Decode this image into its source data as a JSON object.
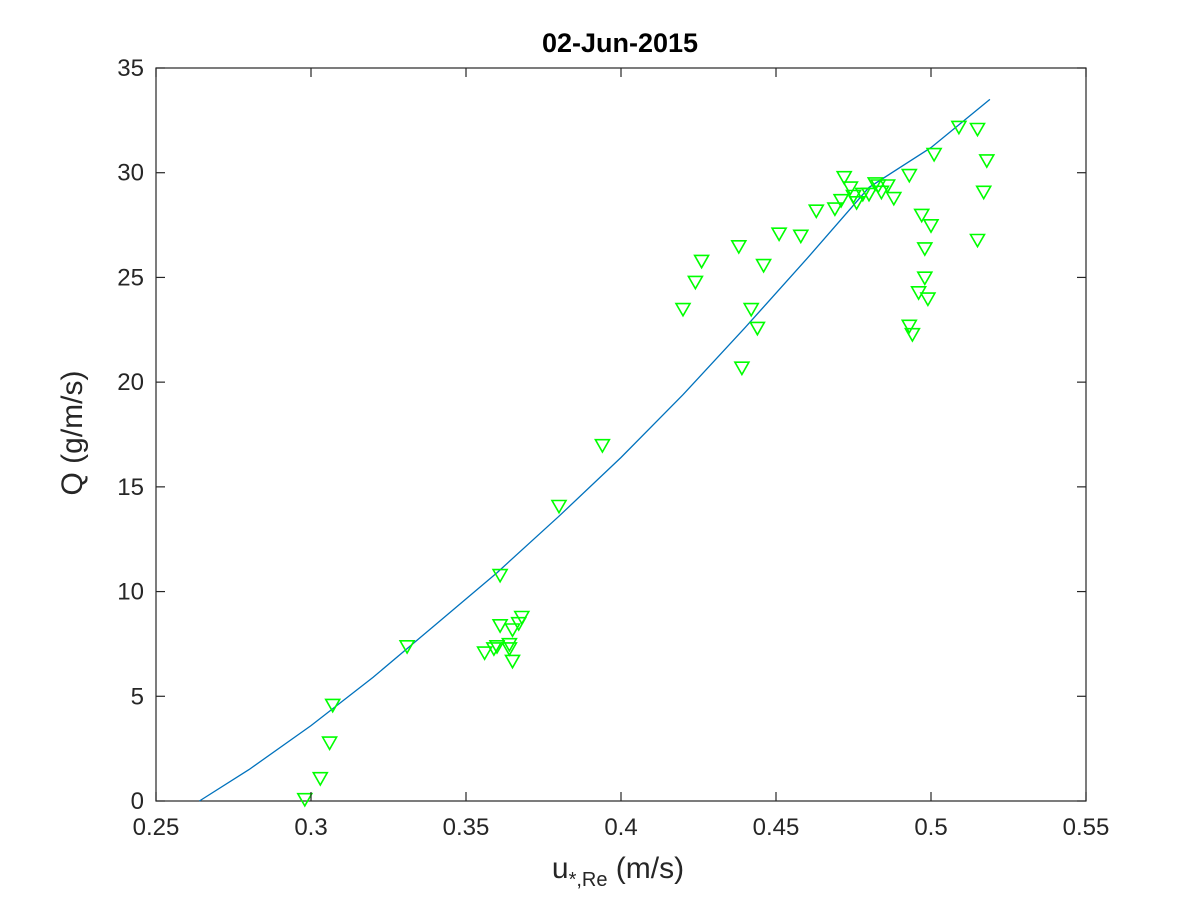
{
  "chart_data": {
    "type": "scatter",
    "title": "02-Jun-2015",
    "xlabel": {
      "main": "u",
      "sub": "*,Re",
      "unit": " (m/s)"
    },
    "ylabel": "Q (g/m/s)",
    "xlim": [
      0.25,
      0.55
    ],
    "ylim": [
      0,
      35
    ],
    "xticks": [
      0.25,
      0.3,
      0.35,
      0.4,
      0.45,
      0.5,
      0.55
    ],
    "xtick_labels": [
      "0.25",
      "0.3",
      "0.35",
      "0.4",
      "0.45",
      "0.5",
      "0.55"
    ],
    "yticks": [
      0,
      5,
      10,
      15,
      20,
      25,
      30,
      35
    ],
    "ytick_labels": [
      "0",
      "5",
      "10",
      "15",
      "20",
      "25",
      "30",
      "35"
    ],
    "grid": false,
    "marker_color": "#00ff00",
    "line_color": "#0072bd",
    "points": [
      [
        0.298,
        0.1
      ],
      [
        0.303,
        1.1
      ],
      [
        0.306,
        2.8
      ],
      [
        0.307,
        4.6
      ],
      [
        0.331,
        7.4
      ],
      [
        0.356,
        7.1
      ],
      [
        0.359,
        7.3
      ],
      [
        0.36,
        7.4
      ],
      [
        0.361,
        8.4
      ],
      [
        0.364,
        7.3
      ],
      [
        0.364,
        7.5
      ],
      [
        0.365,
        6.7
      ],
      [
        0.365,
        8.2
      ],
      [
        0.367,
        8.5
      ],
      [
        0.368,
        8.8
      ],
      [
        0.361,
        10.8
      ],
      [
        0.38,
        14.1
      ],
      [
        0.394,
        17.0
      ],
      [
        0.42,
        23.5
      ],
      [
        0.424,
        24.8
      ],
      [
        0.426,
        25.8
      ],
      [
        0.438,
        26.5
      ],
      [
        0.439,
        20.7
      ],
      [
        0.442,
        23.5
      ],
      [
        0.444,
        22.6
      ],
      [
        0.446,
        25.6
      ],
      [
        0.451,
        27.1
      ],
      [
        0.458,
        27.0
      ],
      [
        0.463,
        28.2
      ],
      [
        0.469,
        28.3
      ],
      [
        0.471,
        28.7
      ],
      [
        0.472,
        29.8
      ],
      [
        0.474,
        29.3
      ],
      [
        0.475,
        28.9
      ],
      [
        0.476,
        28.6
      ],
      [
        0.478,
        29.0
      ],
      [
        0.48,
        29.0
      ],
      [
        0.482,
        29.5
      ],
      [
        0.483,
        29.4
      ],
      [
        0.484,
        29.1
      ],
      [
        0.486,
        29.4
      ],
      [
        0.488,
        28.8
      ],
      [
        0.493,
        29.9
      ],
      [
        0.493,
        22.7
      ],
      [
        0.494,
        22.3
      ],
      [
        0.496,
        24.3
      ],
      [
        0.497,
        28.0
      ],
      [
        0.498,
        25.0
      ],
      [
        0.498,
        26.4
      ],
      [
        0.499,
        24.0
      ],
      [
        0.5,
        27.5
      ],
      [
        0.501,
        30.9
      ],
      [
        0.509,
        32.2
      ],
      [
        0.515,
        32.1
      ],
      [
        0.515,
        26.8
      ],
      [
        0.517,
        29.1
      ],
      [
        0.518,
        30.6
      ]
    ],
    "fit_curve": [
      [
        0.264,
        0.0
      ],
      [
        0.28,
        1.5
      ],
      [
        0.3,
        3.6
      ],
      [
        0.32,
        5.9
      ],
      [
        0.34,
        8.4
      ],
      [
        0.36,
        10.9
      ],
      [
        0.38,
        13.6
      ],
      [
        0.4,
        16.4
      ],
      [
        0.42,
        19.4
      ],
      [
        0.44,
        22.6
      ],
      [
        0.46,
        25.9
      ],
      [
        0.48,
        29.3
      ],
      [
        0.5,
        31.2
      ],
      [
        0.519,
        33.5
      ]
    ]
  }
}
